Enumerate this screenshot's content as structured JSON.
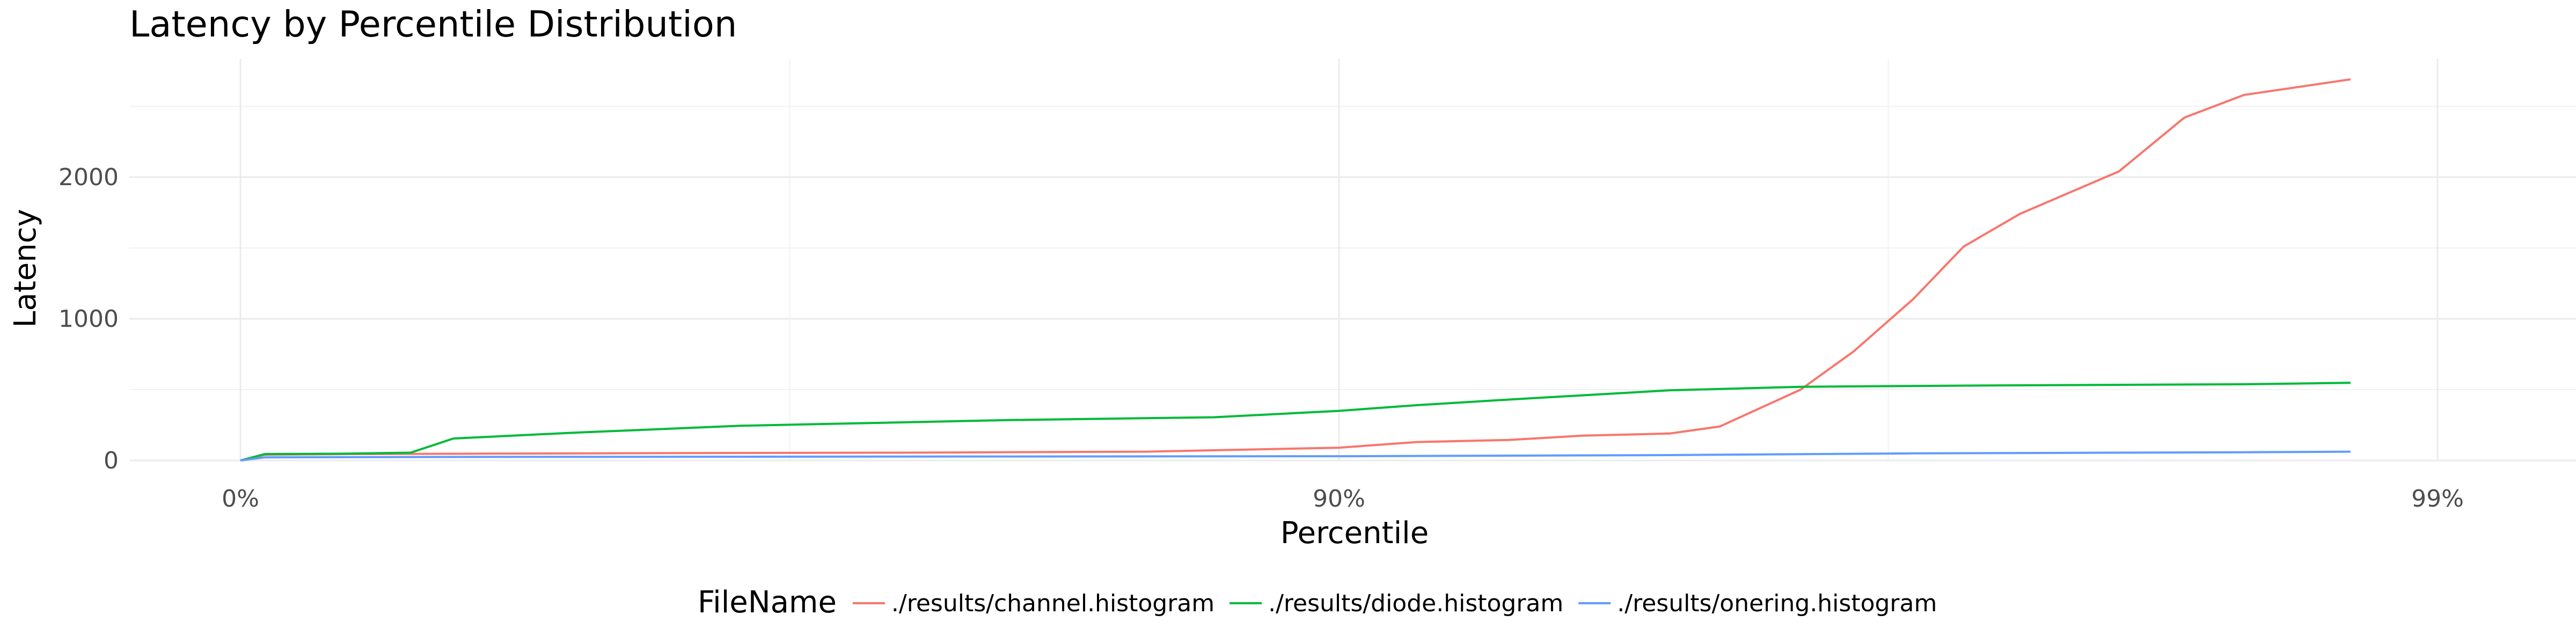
{
  "chart_data": {
    "type": "line",
    "title": "Latency by Percentile Distribution",
    "xlabel": "Percentile",
    "ylabel": "Latency",
    "x_scale": "log-reciprocal (1 / (1 - percentile))",
    "xlim": [
      0,
      99
    ],
    "ylim": [
      0,
      2800
    ],
    "x_ticks": [
      {
        "value": 0,
        "label": "0%"
      },
      {
        "value": 90,
        "label": "90%"
      },
      {
        "value": 99,
        "label": "99%"
      }
    ],
    "y_ticks": [
      {
        "value": 0,
        "label": "0"
      },
      {
        "value": 1000,
        "label": "1000"
      },
      {
        "value": 2000,
        "label": "2000"
      }
    ],
    "grid": true,
    "legend": {
      "title": "FileName",
      "position": "bottom"
    },
    "series": [
      {
        "name": "./results/channel.histogram",
        "color": "#F8766D",
        "points": [
          {
            "x": 0,
            "y": 0
          },
          {
            "x": 5,
            "y": 40
          },
          {
            "x": 20,
            "y": 45
          },
          {
            "x": 40,
            "y": 48
          },
          {
            "x": 60,
            "y": 52
          },
          {
            "x": 75,
            "y": 55
          },
          {
            "x": 85,
            "y": 62
          },
          {
            "x": 90,
            "y": 90
          },
          {
            "x": 91.5,
            "y": 130
          },
          {
            "x": 93,
            "y": 145
          },
          {
            "x": 94,
            "y": 175
          },
          {
            "x": 95,
            "y": 190
          },
          {
            "x": 95.5,
            "y": 240
          },
          {
            "x": 96.2,
            "y": 500
          },
          {
            "x": 96.6,
            "y": 770
          },
          {
            "x": 97,
            "y": 1140
          },
          {
            "x": 97.3,
            "y": 1510
          },
          {
            "x": 97.6,
            "y": 1740
          },
          {
            "x": 98.05,
            "y": 2040
          },
          {
            "x": 98.3,
            "y": 2420
          },
          {
            "x": 98.5,
            "y": 2580
          },
          {
            "x": 98.8,
            "y": 2690
          }
        ]
      },
      {
        "name": "./results/diode.histogram",
        "color": "#00BA38",
        "points": [
          {
            "x": 0,
            "y": 0
          },
          {
            "x": 5,
            "y": 45
          },
          {
            "x": 20,
            "y": 48
          },
          {
            "x": 30,
            "y": 55
          },
          {
            "x": 36,
            "y": 155
          },
          {
            "x": 50,
            "y": 195
          },
          {
            "x": 65,
            "y": 245
          },
          {
            "x": 80,
            "y": 285
          },
          {
            "x": 87,
            "y": 305
          },
          {
            "x": 90,
            "y": 350
          },
          {
            "x": 91.5,
            "y": 390
          },
          {
            "x": 93,
            "y": 430
          },
          {
            "x": 94,
            "y": 460
          },
          {
            "x": 95,
            "y": 495
          },
          {
            "x": 96.2,
            "y": 520
          },
          {
            "x": 97.5,
            "y": 530
          },
          {
            "x": 98.5,
            "y": 538
          },
          {
            "x": 98.8,
            "y": 548
          }
        ]
      },
      {
        "name": "./results/onering.histogram",
        "color": "#619CFF",
        "points": [
          {
            "x": 0,
            "y": 0
          },
          {
            "x": 5,
            "y": 22
          },
          {
            "x": 40,
            "y": 25
          },
          {
            "x": 80,
            "y": 28
          },
          {
            "x": 90,
            "y": 30
          },
          {
            "x": 95,
            "y": 38
          },
          {
            "x": 97,
            "y": 50
          },
          {
            "x": 98.5,
            "y": 58
          },
          {
            "x": 98.8,
            "y": 62
          }
        ]
      }
    ]
  }
}
